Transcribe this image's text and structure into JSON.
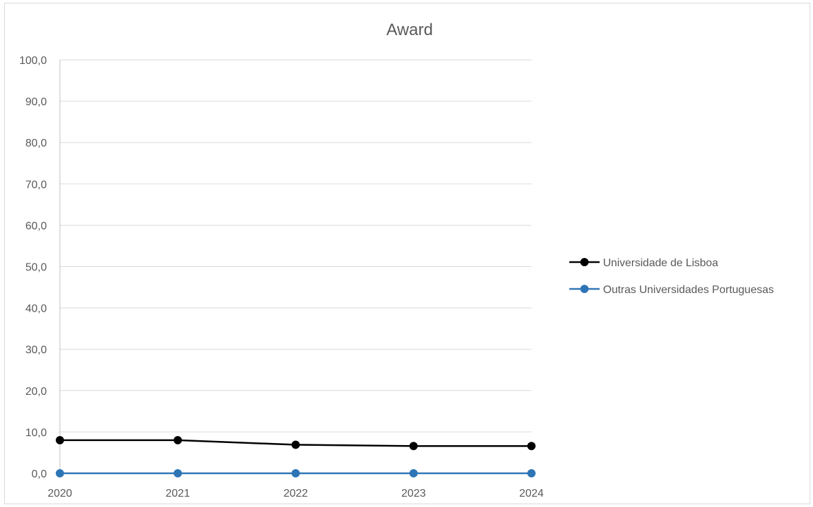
{
  "chart_data": {
    "type": "line",
    "title": "Award",
    "xlabel": "",
    "ylabel": "",
    "categories": [
      "2020",
      "2021",
      "2022",
      "2023",
      "2024"
    ],
    "y_tick_labels": [
      "0,0",
      "10,0",
      "20,0",
      "30,0",
      "40,0",
      "50,0",
      "60,0",
      "70,0",
      "80,0",
      "90,0",
      "100,0"
    ],
    "ylim": [
      0,
      100
    ],
    "y_step": 10,
    "grid": true,
    "legend_position": "right",
    "series": [
      {
        "name": "Universidade de Lisboa",
        "color": "#000000",
        "values": [
          8.0,
          8.0,
          6.9,
          6.6,
          6.6
        ]
      },
      {
        "name": "Outras Universidades Portuguesas",
        "color": "#2e75b6",
        "values": [
          0.0,
          0.0,
          0.0,
          0.0,
          0.0
        ]
      }
    ]
  }
}
